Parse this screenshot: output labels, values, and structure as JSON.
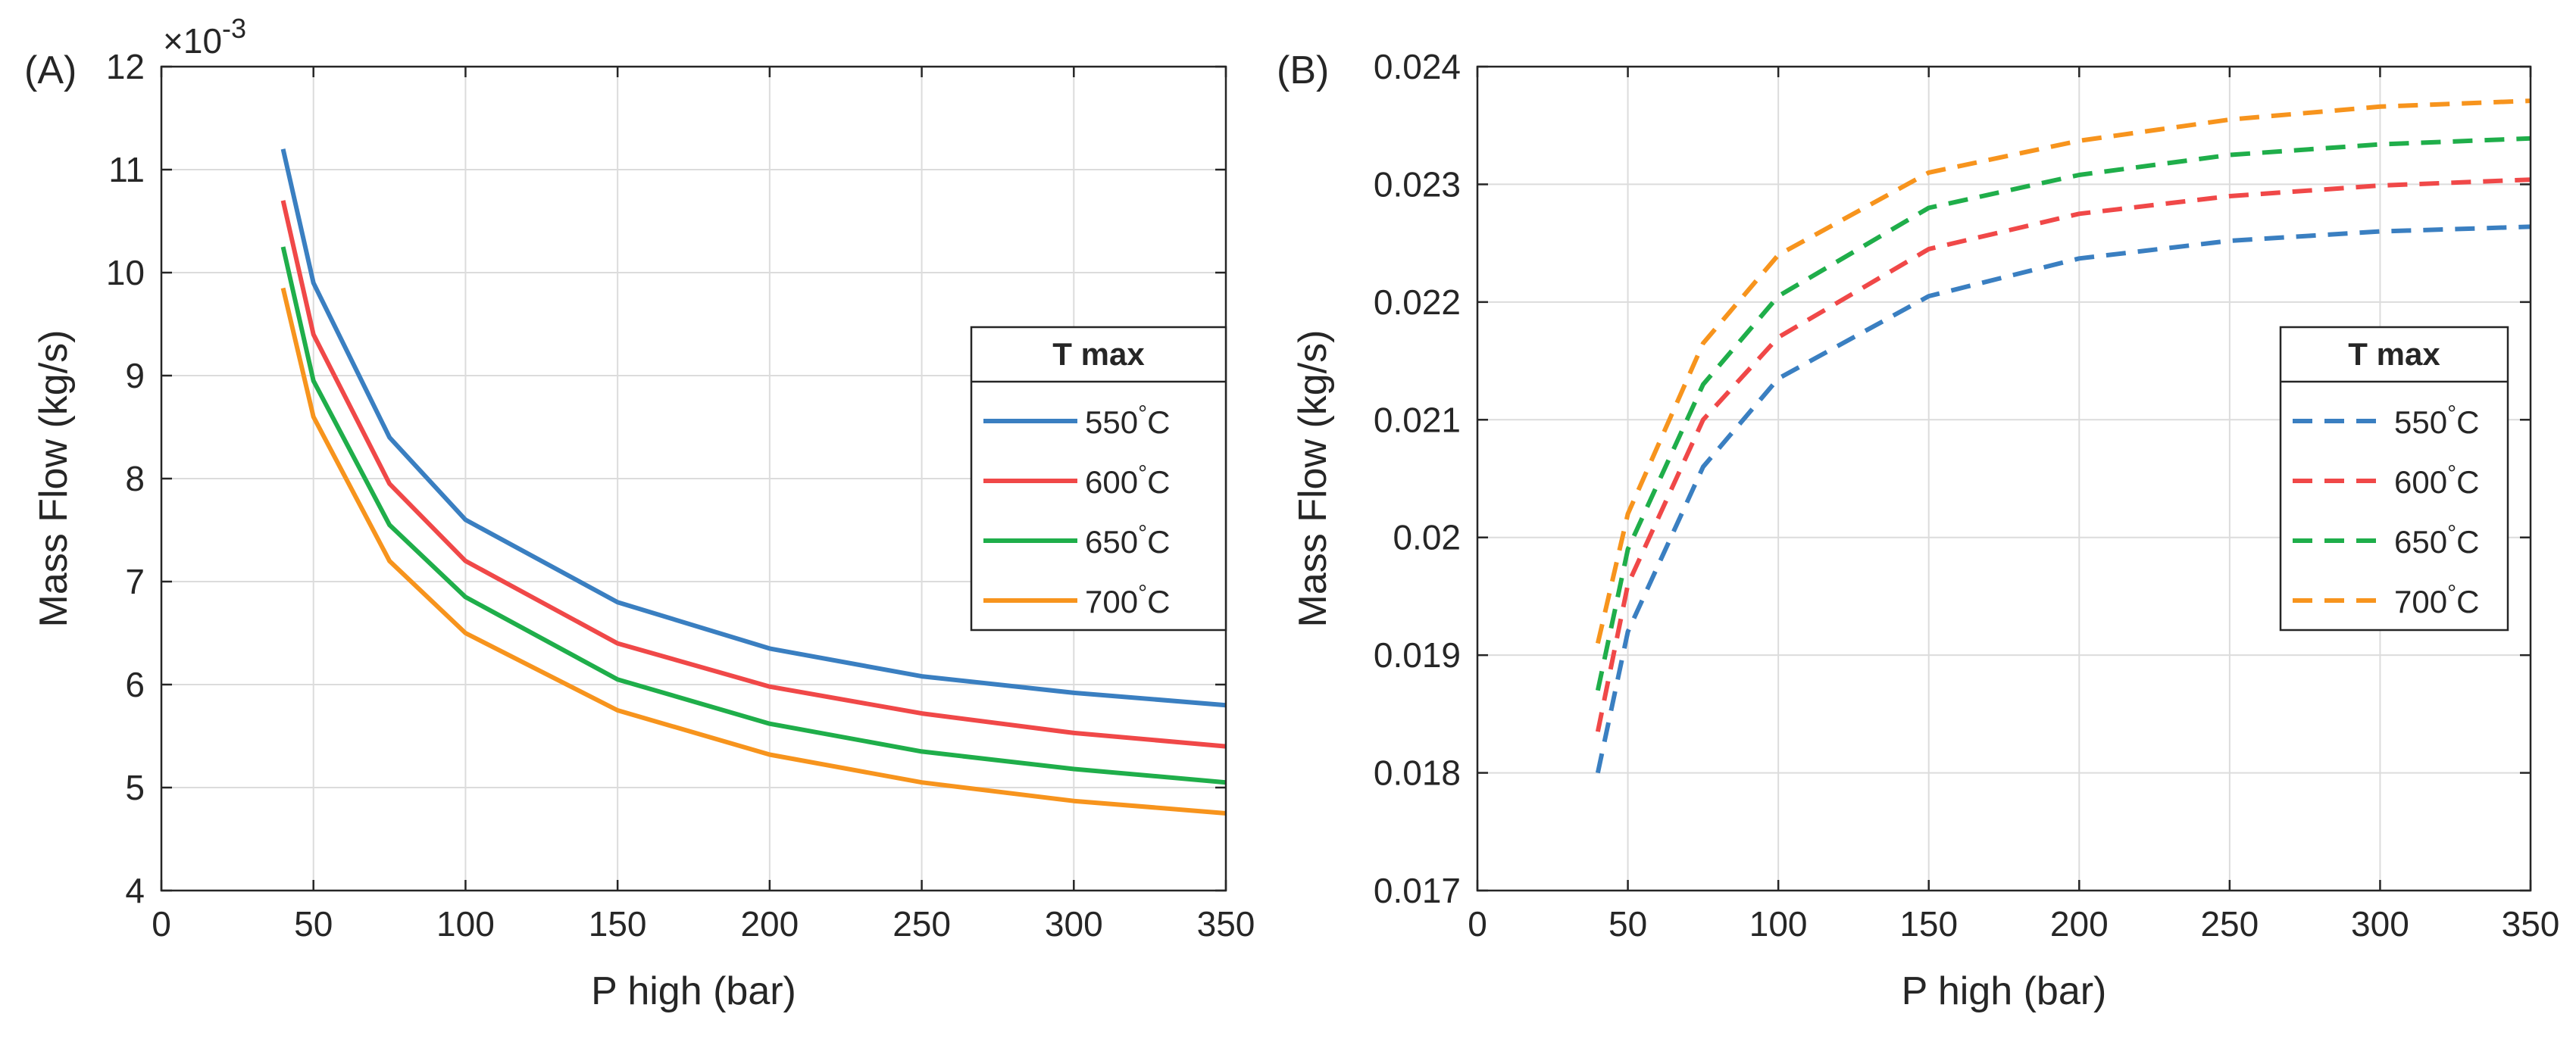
{
  "chart_data": [
    {
      "panel_label": "(A)",
      "type": "line",
      "xlabel": "P high (bar)",
      "ylabel": "Mass Flow (kg/s)",
      "y_exponent_label": "×10",
      "y_exponent_power": "-3",
      "xlim": [
        0,
        350
      ],
      "ylim": [
        4,
        12
      ],
      "xticks": [
        0,
        50,
        100,
        150,
        200,
        250,
        300,
        350
      ],
      "yticks": [
        4,
        5,
        6,
        7,
        8,
        9,
        10,
        11,
        12
      ],
      "xtick_labels": [
        "0",
        "50",
        "100",
        "150",
        "200",
        "250",
        "300",
        "350"
      ],
      "ytick_labels": [
        "4",
        "5",
        "6",
        "7",
        "8",
        "9",
        "10",
        "11",
        "12"
      ],
      "grid": true,
      "line_style": "solid",
      "legend": {
        "title": "T max",
        "placement": "center-right"
      },
      "x": [
        40,
        50,
        75,
        100,
        150,
        200,
        250,
        300,
        350
      ],
      "series": [
        {
          "name": "550",
          "unit": "°C",
          "color": "#3a7fc1",
          "values": [
            11.2,
            9.9,
            8.4,
            7.6,
            6.8,
            6.35,
            6.08,
            5.92,
            5.8
          ]
        },
        {
          "name": "600",
          "unit": "°C",
          "color": "#f04848",
          "values": [
            10.7,
            9.4,
            7.95,
            7.2,
            6.4,
            5.98,
            5.72,
            5.53,
            5.4
          ]
        },
        {
          "name": "650",
          "unit": "°C",
          "color": "#1fae4a",
          "values": [
            10.25,
            8.95,
            7.55,
            6.85,
            6.05,
            5.62,
            5.35,
            5.18,
            5.05
          ]
        },
        {
          "name": "700",
          "unit": "°C",
          "color": "#f7941d",
          "values": [
            9.85,
            8.6,
            7.2,
            6.5,
            5.75,
            5.32,
            5.05,
            4.87,
            4.75
          ]
        }
      ]
    },
    {
      "panel_label": "(B)",
      "type": "line",
      "xlabel": "P high (bar)",
      "ylabel": "Mass Flow (kg/s)",
      "xlim": [
        0,
        350
      ],
      "ylim": [
        0.017,
        0.024
      ],
      "xticks": [
        0,
        50,
        100,
        150,
        200,
        250,
        300,
        350
      ],
      "yticks": [
        0.017,
        0.018,
        0.019,
        0.02,
        0.021,
        0.022,
        0.023,
        0.024
      ],
      "xtick_labels": [
        "0",
        "50",
        "100",
        "150",
        "200",
        "250",
        "300",
        "350"
      ],
      "ytick_labels": [
        "0.017",
        "0.018",
        "0.019",
        "0.02",
        "0.021",
        "0.022",
        "0.023",
        "0.024"
      ],
      "grid": true,
      "line_style": "dashed",
      "legend": {
        "title": "T max",
        "placement": "center-right"
      },
      "x": [
        40,
        50,
        75,
        100,
        150,
        200,
        250,
        300,
        350
      ],
      "series": [
        {
          "name": "550",
          "unit": "°C",
          "color": "#3a7fc1",
          "values": [
            0.018,
            0.0192,
            0.0206,
            0.02135,
            0.02205,
            0.02237,
            0.02252,
            0.0226,
            0.02264
          ]
        },
        {
          "name": "600",
          "unit": "°C",
          "color": "#f04848",
          "values": [
            0.01835,
            0.0196,
            0.021,
            0.0217,
            0.02245,
            0.02275,
            0.0229,
            0.02299,
            0.02304
          ]
        },
        {
          "name": "650",
          "unit": "°C",
          "color": "#1fae4a",
          "values": [
            0.0187,
            0.0199,
            0.0213,
            0.02205,
            0.0228,
            0.02308,
            0.02325,
            0.02334,
            0.02339
          ]
        },
        {
          "name": "700",
          "unit": "°C",
          "color": "#f7941d",
          "values": [
            0.0191,
            0.0202,
            0.02165,
            0.0224,
            0.0231,
            0.02337,
            0.02355,
            0.02366,
            0.02371
          ]
        }
      ]
    }
  ]
}
